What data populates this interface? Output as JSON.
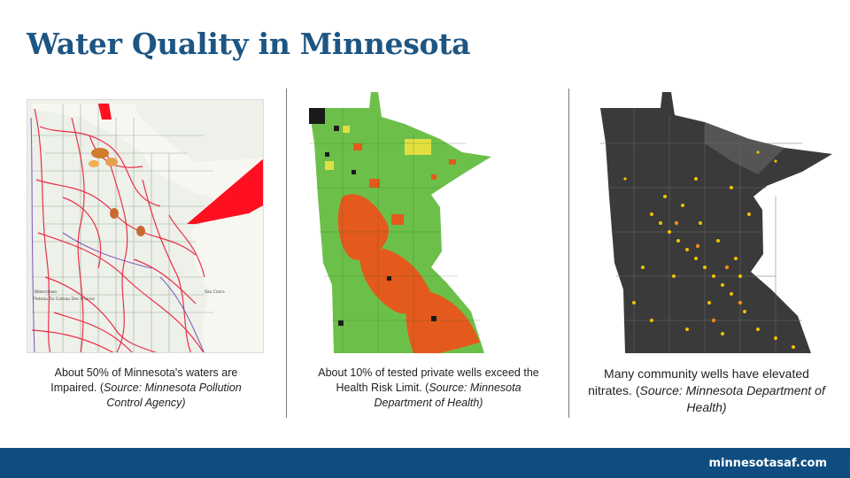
{
  "slide": {
    "title": "Water Quality in Minnesota"
  },
  "panels": [
    {
      "caption_text": "About 50% of Minnesota's waters are Impaired. (",
      "caption_source": "Source: Minnesota Pollution Control Agency)"
    },
    {
      "caption_text": "About 10% of tested private wells exceed the Health Risk Limit. (",
      "caption_source": "Source: Minnesota Department of Health)"
    },
    {
      "caption_text": "Many community wells have elevated nitrates. (",
      "caption_source": "Source: Minnesota Department of Health)"
    }
  ],
  "map1_labels": {
    "label_a": "Waterdown",
    "label_b": "Plateau Du Coteau Des Prairies",
    "label_c": "Sao Claire"
  },
  "footer": {
    "url": "minnesotasaf.com"
  },
  "colors": {
    "title": "#1d5583",
    "footer": "#0f4c81",
    "impaired": "#e8102a",
    "well_green": "#6cc04a",
    "well_orange": "#e45a1c",
    "nitrate_dark": "#3a3a3a",
    "nitrate_yellow": "#f2c200"
  }
}
